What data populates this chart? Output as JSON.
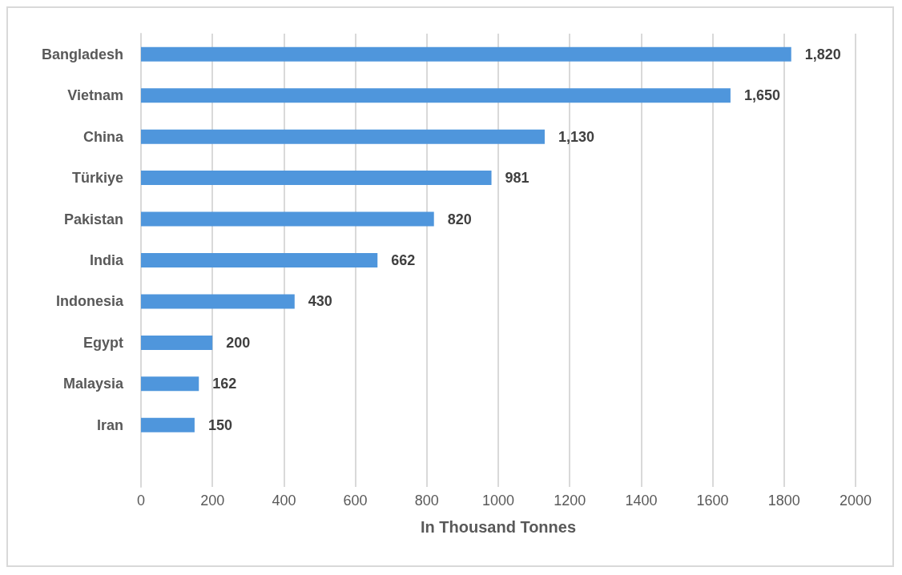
{
  "chart_data": {
    "type": "bar",
    "orientation": "horizontal",
    "xlabel": "In Thousand Tonnes",
    "categories": [
      "Bangladesh",
      "Vietnam",
      "China",
      "Türkiye",
      "Pakistan",
      "India",
      "Indonesia",
      "Egypt",
      "Malaysia",
      "Iran",
      null
    ],
    "values": [
      1820,
      1650,
      1130,
      981,
      820,
      662,
      430,
      200,
      162,
      150,
      null
    ],
    "value_labels": [
      "1,820",
      "1,650",
      "1,130",
      "981",
      "820",
      "662",
      "430",
      "200",
      "162",
      "150",
      null
    ],
    "color": "#4f96dc",
    "xlim": [
      0,
      2000
    ],
    "xticks": [
      0,
      200,
      400,
      600,
      800,
      1000,
      1200,
      1400,
      1600,
      1800,
      2000
    ],
    "grid": "x"
  }
}
